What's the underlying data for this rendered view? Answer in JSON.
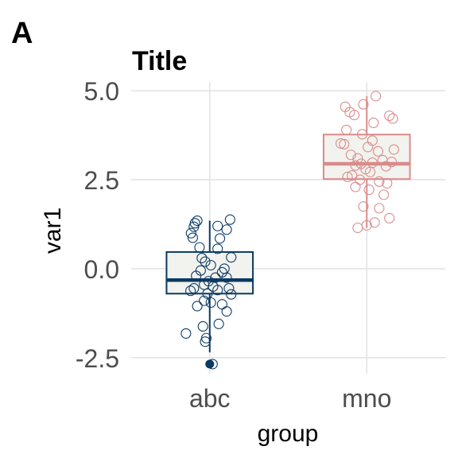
{
  "panel_label": "A",
  "chart_data": {
    "type": "box",
    "title": "Title",
    "xlabel": "group",
    "ylabel": "var1",
    "categories": [
      "abc",
      "mno"
    ],
    "ylim": [
      -2.95,
      5.25
    ],
    "yticks": [
      5.0,
      2.5,
      0.0,
      -2.5
    ],
    "ytick_labels": [
      "5.0",
      "2.5",
      "0.0",
      "-2.5"
    ],
    "grid": true,
    "series": [
      {
        "category": "abc",
        "color": "#0b3a63",
        "box": {
          "q1": -0.7,
          "median": -0.32,
          "q3": 0.47,
          "whisker_low": -2.35,
          "whisker_high": 1.35
        },
        "outliers": [
          -2.68
        ],
        "points": [
          {
            "x": -0.22,
            "y": 1.35
          },
          {
            "x": -0.28,
            "y": 1.18
          },
          {
            "x": -0.33,
            "y": 1.0
          },
          {
            "x": -0.3,
            "y": 0.87
          },
          {
            "x": -0.26,
            "y": 1.28
          },
          {
            "x": 0.14,
            "y": 1.2
          },
          {
            "x": 0.36,
            "y": 1.38
          },
          {
            "x": 0.3,
            "y": 1.1
          },
          {
            "x": 0.18,
            "y": 0.85
          },
          {
            "x": -0.18,
            "y": 0.6
          },
          {
            "x": 0.14,
            "y": 0.56
          },
          {
            "x": 0.38,
            "y": 0.32
          },
          {
            "x": -0.08,
            "y": 0.2
          },
          {
            "x": 0.02,
            "y": 0.1
          },
          {
            "x": -0.16,
            "y": -0.05
          },
          {
            "x": 0.22,
            "y": -0.1
          },
          {
            "x": 0.3,
            "y": -0.25
          },
          {
            "x": -0.02,
            "y": -0.35
          },
          {
            "x": -0.1,
            "y": -0.45
          },
          {
            "x": 0.06,
            "y": -0.5
          },
          {
            "x": -0.28,
            "y": -0.55
          },
          {
            "x": -0.34,
            "y": -0.62
          },
          {
            "x": 0.14,
            "y": -0.6
          },
          {
            "x": 0.34,
            "y": -0.55
          },
          {
            "x": 0.38,
            "y": -0.72
          },
          {
            "x": -0.1,
            "y": -0.9
          },
          {
            "x": 0.02,
            "y": -0.95
          },
          {
            "x": 0.22,
            "y": -1.0
          },
          {
            "x": -0.22,
            "y": -1.05
          },
          {
            "x": 0.3,
            "y": -1.2
          },
          {
            "x": -0.12,
            "y": -1.62
          },
          {
            "x": 0.16,
            "y": -1.55
          },
          {
            "x": -0.42,
            "y": -1.82
          },
          {
            "x": -0.06,
            "y": -1.95
          },
          {
            "x": -0.08,
            "y": -2.05
          },
          {
            "x": -0.24,
            "y": -0.2
          },
          {
            "x": 0.1,
            "y": -0.25
          },
          {
            "x": -0.14,
            "y": 0.3
          },
          {
            "x": 0.26,
            "y": 0.0
          },
          {
            "x": -0.04,
            "y": -0.7
          },
          {
            "x": 0.05,
            "y": -2.68
          }
        ]
      },
      {
        "category": "mno",
        "color": "#d98b8b",
        "box": {
          "q1": 2.52,
          "median": 2.95,
          "q3": 3.77,
          "whisker_low": 1.15,
          "whisker_high": 4.85
        },
        "outliers": [],
        "points": [
          {
            "x": 0.16,
            "y": 4.85
          },
          {
            "x": -0.06,
            "y": 4.62
          },
          {
            "x": -0.38,
            "y": 4.55
          },
          {
            "x": -0.3,
            "y": 4.4
          },
          {
            "x": -0.22,
            "y": 4.32
          },
          {
            "x": 0.4,
            "y": 4.3
          },
          {
            "x": 0.46,
            "y": 4.22
          },
          {
            "x": 0.12,
            "y": 4.1
          },
          {
            "x": -0.36,
            "y": 3.9
          },
          {
            "x": -0.08,
            "y": 3.78
          },
          {
            "x": 0.1,
            "y": 3.6
          },
          {
            "x": -0.46,
            "y": 3.52
          },
          {
            "x": -0.4,
            "y": 3.5
          },
          {
            "x": 0.02,
            "y": 3.42
          },
          {
            "x": 0.48,
            "y": 3.35
          },
          {
            "x": -0.16,
            "y": 3.1
          },
          {
            "x": 0.28,
            "y": 3.05
          },
          {
            "x": 0.1,
            "y": 2.98
          },
          {
            "x": -0.2,
            "y": 2.9
          },
          {
            "x": 0.34,
            "y": 2.88
          },
          {
            "x": -0.02,
            "y": 2.8
          },
          {
            "x": 0.06,
            "y": 2.72
          },
          {
            "x": -0.26,
            "y": 2.62
          },
          {
            "x": -0.34,
            "y": 2.58
          },
          {
            "x": -0.12,
            "y": 2.5
          },
          {
            "x": 0.22,
            "y": 2.45
          },
          {
            "x": 0.36,
            "y": 2.4
          },
          {
            "x": -0.2,
            "y": 2.3
          },
          {
            "x": 0.04,
            "y": 2.22
          },
          {
            "x": 0.3,
            "y": 2.08
          },
          {
            "x": -0.06,
            "y": 1.75
          },
          {
            "x": 0.22,
            "y": 1.7
          },
          {
            "x": 0.4,
            "y": 1.42
          },
          {
            "x": 0.0,
            "y": 1.22
          },
          {
            "x": -0.16,
            "y": 1.15
          },
          {
            "x": 0.14,
            "y": 1.3
          },
          {
            "x": -0.28,
            "y": 3.2
          },
          {
            "x": 0.44,
            "y": 3.0
          },
          {
            "x": -0.1,
            "y": 2.95
          },
          {
            "x": 0.2,
            "y": 3.3
          }
        ]
      }
    ]
  }
}
